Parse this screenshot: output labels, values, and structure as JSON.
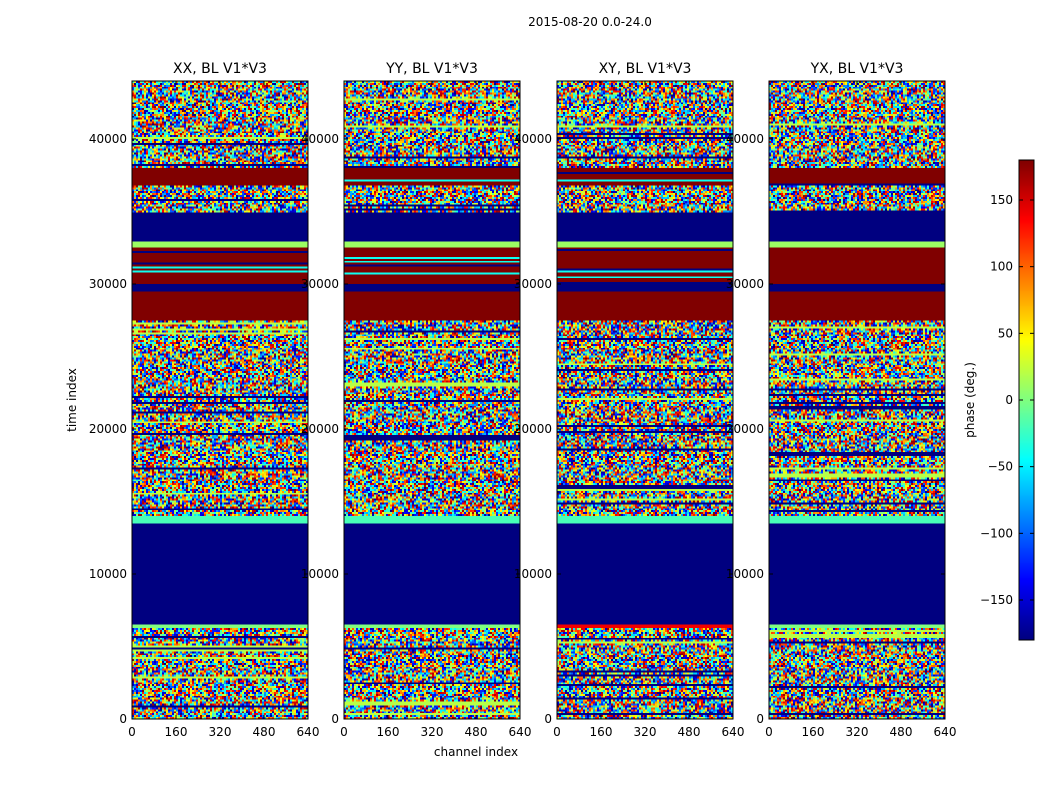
{
  "suptitle": "2015-08-20 0.0-24.0",
  "chart_data": {
    "type": "heatmap",
    "xlabel": "channel index",
    "ylabel": "time index",
    "xlim": [
      0,
      640
    ],
    "ylim": [
      0,
      44000
    ],
    "xticks": [
      0,
      160,
      320,
      480,
      640
    ],
    "yticks": [
      0,
      10000,
      20000,
      30000,
      40000
    ],
    "colorbar": {
      "label": "phase (deg.)",
      "range": [
        -180,
        180
      ],
      "ticks": [
        -150,
        -100,
        -50,
        0,
        50,
        100,
        150
      ],
      "tick_labels": [
        "−150",
        "−100",
        "−50",
        "0",
        "50",
        "100",
        "150"
      ],
      "colormap": "jet",
      "colors": [
        "#00007f",
        "#0000ff",
        "#007fff",
        "#00ffff",
        "#7fff7f",
        "#ffff00",
        "#ff7f00",
        "#ff0000",
        "#7f0000"
      ]
    },
    "panels": [
      {
        "title": "XX, BL V1*V3",
        "seed": 11
      },
      {
        "title": "YY, BL V1*V3",
        "seed": 23
      },
      {
        "title": "XY, BL V1*V3",
        "seed": 37
      },
      {
        "title": "YX, BL V1*V3",
        "seed": 53
      }
    ],
    "time_bands": [
      {
        "from": 0,
        "to": 6300,
        "kind": "noise"
      },
      {
        "from": 6300,
        "to": 6500,
        "kind": "flag_low"
      },
      {
        "from": 6500,
        "to": 13500,
        "kind": "constant",
        "phase": -180
      },
      {
        "from": 13500,
        "to": 14000,
        "kind": "constant",
        "phase": -20
      },
      {
        "from": 14000,
        "to": 27500,
        "kind": "noise"
      },
      {
        "from": 27500,
        "to": 29500,
        "kind": "constant",
        "phase": 180
      },
      {
        "from": 29500,
        "to": 30000,
        "kind": "constant",
        "phase": -180
      },
      {
        "from": 30000,
        "to": 32500,
        "kind": "striped",
        "phase": 180
      },
      {
        "from": 32500,
        "to": 33000,
        "kind": "constant",
        "phase": 10
      },
      {
        "from": 33000,
        "to": 35000,
        "kind": "constant",
        "phase": -180
      },
      {
        "from": 35000,
        "to": 36800,
        "kind": "noise"
      },
      {
        "from": 36800,
        "to": 38000,
        "kind": "striped",
        "phase": 180
      },
      {
        "from": 38000,
        "to": 40500,
        "kind": "noise"
      },
      {
        "from": 40500,
        "to": 44000,
        "kind": "noise"
      }
    ]
  }
}
